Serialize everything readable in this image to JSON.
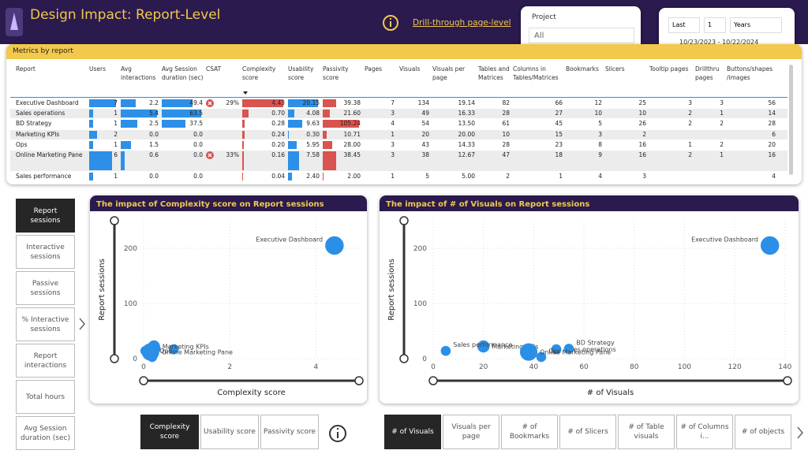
{
  "header": {
    "title": "Design Impact: Report-Level",
    "link": "Drill-through page-level"
  },
  "filters": {
    "project_label": "Project",
    "project_value": "All",
    "date_mode": "Last",
    "date_count": "1",
    "date_unit": "Years",
    "date_range": "10/23/2023 - 10/22/2024"
  },
  "table": {
    "title": "Metrics by report",
    "columns": [
      "Report",
      "Users",
      "Avg interactions",
      "Avg Session duration (sec)",
      "CSAT",
      "Complexity score",
      "Usability score",
      "Passivity score",
      "Pages",
      "Visuals",
      "Visuals per page",
      "Tables and Matrices",
      "Columns in Tables/Matrices",
      "Bookmarks",
      "Slicers",
      "Tooltip pages",
      "Drillthru pages",
      "Buttons/shapes /images"
    ],
    "rows": [
      [
        "Executive Dashboard",
        "7",
        "2.2",
        "49.4",
        "29%",
        "4.43",
        "20.15",
        "39.38",
        "7",
        "134",
        "19.14",
        "82",
        "66",
        "12",
        "25",
        "3",
        "3",
        "56"
      ],
      [
        "Sales operations",
        "1",
        "5.4",
        "63.5",
        null,
        "0.70",
        "4.08",
        "21.60",
        "3",
        "49",
        "16.33",
        "28",
        "27",
        "10",
        "10",
        "2",
        "1",
        "14"
      ],
      [
        "BD Strategy",
        "1",
        "2.5",
        "37.5",
        null,
        "0.28",
        "9.63",
        "105.24",
        "4",
        "54",
        "13.50",
        "61",
        "45",
        "5",
        "26",
        "2",
        "2",
        "28"
      ],
      [
        "Marketing KPIs",
        "2",
        "0.0",
        "0.0",
        null,
        "0.24",
        "0.30",
        "10.71",
        "1",
        "20",
        "20.00",
        "10",
        "15",
        "3",
        "2",
        null,
        null,
        "6"
      ],
      [
        "Ops",
        "1",
        "1.5",
        "0.0",
        null,
        "0.20",
        "5.95",
        "28.00",
        "3",
        "43",
        "14.33",
        "28",
        "23",
        "8",
        "16",
        "1",
        "2",
        "20"
      ],
      [
        "Online Marketing Pane",
        "6",
        "0.6",
        "0.0",
        "33%",
        "0.16",
        "7.58",
        "38.45",
        "3",
        "38",
        "12.67",
        "47",
        "18",
        "9",
        "16",
        "2",
        "1",
        "16"
      ],
      [
        "Sales performance",
        "1",
        "0.0",
        "0.0",
        null,
        "0.04",
        "2.40",
        "2.00",
        "1",
        "5",
        "5.00",
        "2",
        "1",
        "4",
        "3",
        null,
        null,
        "4"
      ]
    ]
  },
  "measure_buttons": {
    "labels": [
      "Report sessions",
      "Interactive sessions",
      "Passive sessions",
      "% Interactive sessions",
      "Report interactions",
      "Total hours",
      "Avg Session duration (sec)"
    ],
    "selected_index": 0
  },
  "score_buttons": {
    "labels": [
      "Complexity score",
      "Usability score",
      "Passivity score"
    ],
    "selected_index": 0
  },
  "count_buttons": {
    "labels": [
      "# of Visuals",
      "Visuals per page",
      "# of Bookmarks",
      "# of Slicers",
      "# of Table visuals",
      "# of Columns i...",
      "# of objects"
    ],
    "selected_index": 0
  },
  "chart_data": [
    {
      "type": "scatter",
      "title": "The impact of Complexity score on Report sessions",
      "x_label": "Complexity score",
      "y_label": "Report sessions",
      "x": [
        4.43,
        0.7,
        0.28,
        0.24,
        0.2,
        0.16,
        0.04
      ],
      "values": [
        205,
        17,
        18,
        22,
        3,
        12,
        14
      ],
      "sizes": [
        7,
        1,
        1,
        2,
        1,
        6,
        1
      ],
      "labels": [
        "Executive Dashboard",
        null,
        null,
        "Marketing KPIs",
        "Ops",
        "Online Marketing Pane",
        null
      ],
      "color": "#2b8fe8",
      "xlim": [
        0,
        5
      ],
      "ylim": [
        0,
        250
      ],
      "xticks": [
        0,
        2,
        4
      ],
      "yticks": [
        0,
        100,
        200
      ],
      "grid": true
    },
    {
      "type": "scatter",
      "title": "The impact of # of Visuals on Report sessions",
      "x_label": "# of Visuals",
      "y_label": "Report sessions",
      "x": [
        134,
        49,
        54,
        20,
        43,
        38,
        5
      ],
      "values": [
        205,
        17,
        18,
        22,
        3,
        12,
        14
      ],
      "sizes": [
        7,
        1,
        1,
        2,
        1,
        6,
        1
      ],
      "labels": [
        "Executive Dashboard",
        "Sales operations",
        "BD Strategy",
        "Marketing KPIs",
        "Ops",
        "Online Marketing Pane",
        "Sales performance"
      ],
      "color": "#2b8fe8",
      "xlim": [
        0,
        141
      ],
      "ylim": [
        0,
        250
      ],
      "xticks": [
        0,
        20,
        40,
        60,
        80,
        100,
        120,
        140
      ],
      "yticks": [
        0,
        100,
        200
      ],
      "grid": true
    }
  ]
}
